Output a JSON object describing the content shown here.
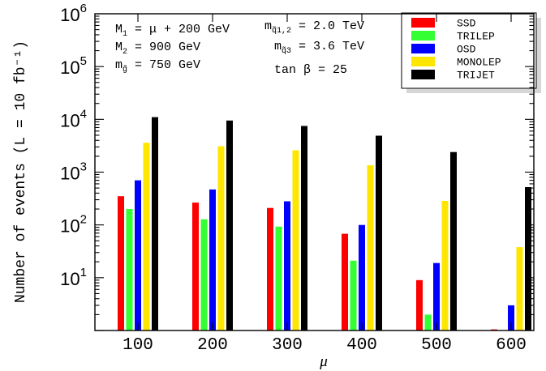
{
  "chart_data": {
    "type": "bar",
    "yscale": "log",
    "ylim": [
      1,
      1000000
    ],
    "xlabel": "μ",
    "ylabel": "Number of events (L = 10 fb⁻¹)",
    "categories": [
      "100",
      "200",
      "300",
      "400",
      "500",
      "600"
    ],
    "yticks": [
      {
        "mant": "10",
        "exp": "1",
        "value": 10
      },
      {
        "mant": "10",
        "exp": "2",
        "value": 100
      },
      {
        "mant": "10",
        "exp": "3",
        "value": 1000
      },
      {
        "mant": "10",
        "exp": "4",
        "value": 10000
      },
      {
        "mant": "10",
        "exp": "5",
        "value": 100000
      },
      {
        "mant": "10",
        "exp": "6",
        "value": 1000000
      }
    ],
    "series": [
      {
        "name": "SSD",
        "color": "#ff0000",
        "values": [
          350,
          265,
          210,
          68,
          9,
          1.05
        ]
      },
      {
        "name": "TRILEP",
        "color": "#33ff33",
        "values": [
          200,
          128,
          93,
          21,
          2,
          null
        ]
      },
      {
        "name": "OSD",
        "color": "#0000ff",
        "values": [
          700,
          470,
          280,
          100,
          19,
          3
        ]
      },
      {
        "name": "MONOLEP",
        "color": "#ffe600",
        "values": [
          3600,
          3100,
          2600,
          1350,
          285,
          38
        ]
      },
      {
        "name": "TRIJET",
        "color": "#000000",
        "values": [
          11000,
          9500,
          7500,
          4900,
          2400,
          520
        ]
      }
    ],
    "annotations": {
      "m1": {
        "base": "M",
        "sub": "1",
        "rest": " = μ + 200  GeV"
      },
      "m2": {
        "base": "M",
        "sub": "2",
        "rest": " = 900  GeV"
      },
      "mg": {
        "base": "m",
        "sub": "g̃",
        "rest": " = 750  GeV"
      },
      "mq12": {
        "base": "m",
        "sub": "q̃1,2",
        "rest": " = 2.0  TeV"
      },
      "mq3": {
        "base": "m",
        "sub": "q̃3",
        "rest": " = 3.6  TeV"
      },
      "tanb": {
        "text": "tan β = 25"
      }
    },
    "legend_position": "top-right",
    "grid": false
  }
}
